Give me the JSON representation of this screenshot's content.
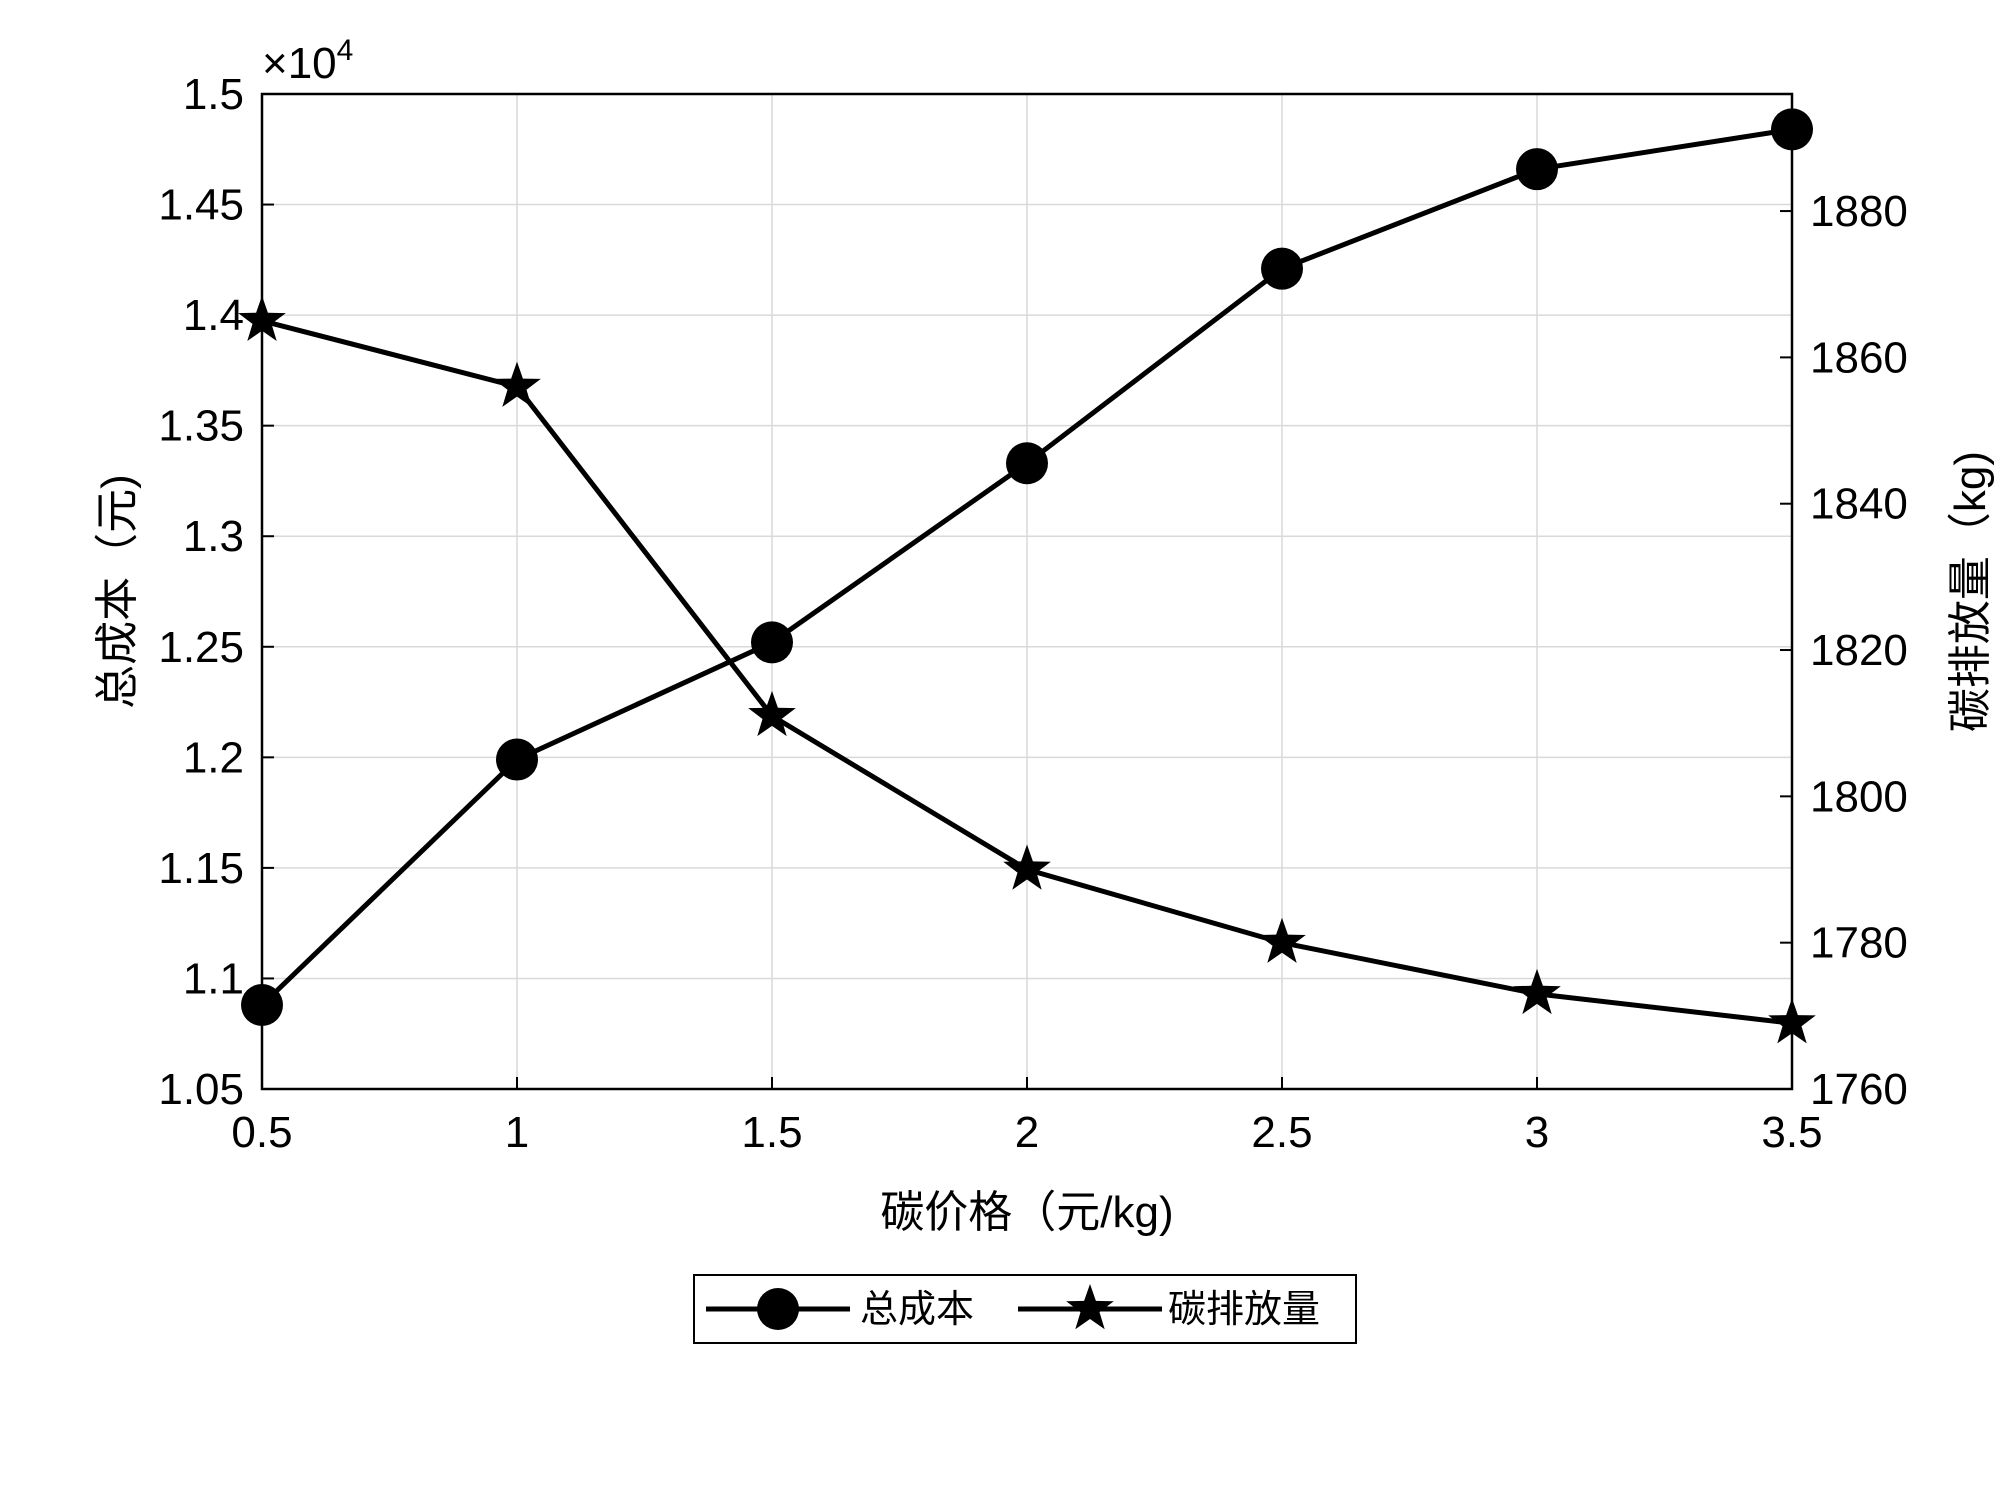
{
  "chart_data": {
    "type": "line",
    "x": [
      0.5,
      1,
      1.5,
      2,
      2.5,
      3,
      3.5
    ],
    "xlabel": "碳价格（元/kg)",
    "xlim": [
      0.5,
      3.5
    ],
    "x_ticks": [
      "0.5",
      "1",
      "1.5",
      "2",
      "2.5",
      "3",
      "3.5"
    ],
    "left_axis": {
      "label": "总成本（元)",
      "lim": [
        1.05,
        1.5
      ],
      "ticks": [
        "1.05",
        "1.1",
        "1.15",
        "1.2",
        "1.25",
        "1.3",
        "1.35",
        "1.4",
        "1.45",
        "1.5"
      ],
      "exponent_base": "×10",
      "exponent_power": "4"
    },
    "right_axis": {
      "label": "碳排放量（kg)",
      "lim": [
        1760,
        1896
      ],
      "ticks": [
        "1760",
        "1780",
        "1800",
        "1820",
        "1840",
        "1860",
        "1880"
      ]
    },
    "series": [
      {
        "name": "总成本",
        "axis": "left",
        "marker": "circle",
        "values": [
          1.088,
          1.199,
          1.252,
          1.333,
          1.421,
          1.466,
          1.484
        ]
      },
      {
        "name": "碳排放量",
        "axis": "right",
        "marker": "star",
        "values": [
          1865,
          1856,
          1811,
          1790,
          1780,
          1773,
          1769
        ]
      }
    ],
    "grid": true,
    "legend": "bottom-center",
    "colors": {
      "line": "#000000",
      "grid": "#d9d9d9"
    }
  }
}
